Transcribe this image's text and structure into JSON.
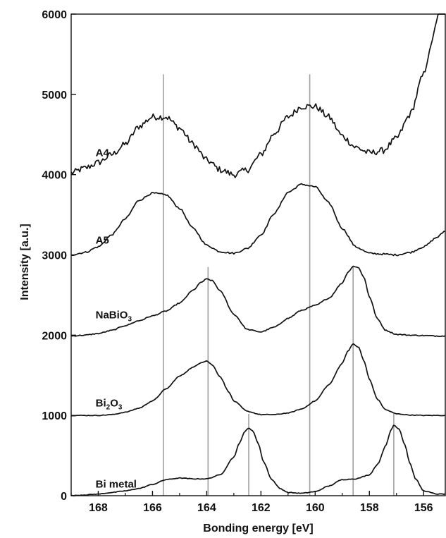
{
  "chart_data": {
    "type": "line",
    "title": "",
    "xlabel": "Bonding energy [eV]",
    "ylabel": "Intensity [a.u.]",
    "xlim": [
      169,
      155.2
    ],
    "ylim": [
      0,
      6000
    ],
    "x_reversed": true,
    "x_ticks": [
      168,
      166,
      164,
      162,
      160,
      158,
      156
    ],
    "y_ticks": [
      0,
      1000,
      2000,
      3000,
      4000,
      5000,
      6000
    ],
    "grid": false,
    "legend": "none",
    "reference_lines": [
      {
        "x": 165.6,
        "y_top": 5250,
        "color": "#a0a0a0"
      },
      {
        "x": 160.2,
        "y_top": 5250,
        "color": "#a0a0a0"
      },
      {
        "x": 163.95,
        "y_top": 2850,
        "color": "#a0a0a0"
      },
      {
        "x": 158.6,
        "y_top": 2850,
        "color": "#a0a0a0"
      },
      {
        "x": 162.45,
        "y_top": 1020,
        "color": "#a0a0a0"
      },
      {
        "x": 157.1,
        "y_top": 1020,
        "color": "#a0a0a0"
      }
    ],
    "series": [
      {
        "name": "A4",
        "label_text": "A4",
        "label_at": {
          "x": 168.1,
          "y": 4230
        },
        "x": [
          169,
          168.5,
          168,
          167.5,
          167,
          166.5,
          166,
          165.5,
          165,
          164.5,
          164,
          163.5,
          163,
          162.5,
          162,
          161.5,
          161,
          160.5,
          160,
          159.5,
          159,
          158.5,
          158,
          157.5,
          157,
          156.5,
          156,
          155.8,
          155.6,
          155.4,
          155.2
        ],
        "y": [
          4020,
          4080,
          4150,
          4250,
          4380,
          4600,
          4720,
          4720,
          4580,
          4380,
          4180,
          4060,
          4000,
          4060,
          4250,
          4520,
          4720,
          4850,
          4850,
          4720,
          4480,
          4340,
          4270,
          4300,
          4450,
          4750,
          5250,
          5500,
          5800,
          6050,
          6250
        ],
        "noise": 40
      },
      {
        "name": "A5",
        "label_text": "A5",
        "label_at": {
          "x": 168.1,
          "y": 3140
        },
        "x": [
          169,
          168.5,
          168,
          167.5,
          167,
          166.5,
          166,
          165.5,
          165,
          164.5,
          164,
          163.5,
          163,
          162.5,
          162,
          161.5,
          161,
          160.5,
          160,
          159.5,
          159,
          158.5,
          158,
          157.5,
          157,
          156.5,
          156,
          155.5,
          155.2
        ],
        "y": [
          3000,
          3030,
          3100,
          3250,
          3450,
          3680,
          3770,
          3750,
          3580,
          3330,
          3120,
          3040,
          3020,
          3080,
          3250,
          3520,
          3780,
          3880,
          3850,
          3650,
          3330,
          3100,
          3020,
          3010,
          3000,
          3030,
          3100,
          3220,
          3300
        ],
        "noise": 10
      },
      {
        "name": "NaBiO3",
        "label_text": "NaBiO",
        "label_sub": "3",
        "label_at": {
          "x": 168.1,
          "y": 2210
        },
        "x": [
          169,
          168.5,
          168,
          167.5,
          167,
          166.5,
          166,
          165.5,
          165,
          164.5,
          164.2,
          164,
          163.8,
          163.5,
          163,
          162.5,
          162,
          161.5,
          161,
          160.5,
          160,
          159.5,
          159,
          158.8,
          158.6,
          158.4,
          158.2,
          158,
          157.7,
          157.4,
          157,
          156.5,
          156,
          155.5,
          155.2
        ],
        "y": [
          1990,
          2000,
          2020,
          2060,
          2120,
          2180,
          2240,
          2300,
          2400,
          2560,
          2660,
          2700,
          2680,
          2550,
          2260,
          2070,
          2040,
          2100,
          2210,
          2310,
          2370,
          2460,
          2650,
          2780,
          2860,
          2840,
          2720,
          2480,
          2200,
          2060,
          2010,
          2000,
          1995,
          1990,
          1990
        ],
        "noise": 6
      },
      {
        "name": "Bi2O3",
        "label_text": "Bi",
        "label_sub": "2",
        "label_tail": "O",
        "label_sub2": "3",
        "label_at": {
          "x": 168.1,
          "y": 1110
        },
        "x": [
          169,
          168.5,
          168,
          167.5,
          167,
          166.5,
          166,
          165.5,
          165,
          164.5,
          164.2,
          164,
          163.8,
          163.5,
          163.2,
          163,
          162.5,
          162,
          161.5,
          161,
          160.5,
          160,
          159.5,
          159,
          158.8,
          158.6,
          158.4,
          158.2,
          158,
          157.7,
          157.4,
          157,
          156.5,
          156,
          155.5,
          155.2
        ],
        "y": [
          1000,
          1000,
          1000,
          1010,
          1040,
          1090,
          1180,
          1330,
          1490,
          1600,
          1660,
          1680,
          1630,
          1480,
          1300,
          1180,
          1050,
          1010,
          1010,
          1030,
          1080,
          1180,
          1380,
          1650,
          1800,
          1890,
          1850,
          1680,
          1450,
          1200,
          1070,
          1020,
          1005,
          1000,
          1000,
          1000
        ],
        "noise": 4
      },
      {
        "name": "Bi metal",
        "label_text": "Bi metal",
        "label_at": {
          "x": 168.1,
          "y": 100
        },
        "x": [
          169,
          168.5,
          168,
          167.5,
          167,
          166.5,
          166,
          165.5,
          165,
          164.5,
          164,
          163.5,
          163,
          162.8,
          162.6,
          162.45,
          162.3,
          162.1,
          161.9,
          161.6,
          161.3,
          161,
          160.5,
          160,
          159.5,
          159,
          158.5,
          158,
          157.7,
          157.4,
          157.2,
          157.1,
          156.9,
          156.7,
          156.5,
          156.3,
          156,
          155.5,
          155.2
        ],
        "y": [
          0,
          10,
          20,
          40,
          60,
          90,
          140,
          200,
          220,
          210,
          210,
          260,
          480,
          650,
          800,
          840,
          810,
          650,
          420,
          200,
          90,
          40,
          30,
          50,
          120,
          200,
          210,
          260,
          390,
          620,
          820,
          880,
          830,
          640,
          400,
          210,
          60,
          20,
          20
        ],
        "noise": 4
      }
    ]
  }
}
